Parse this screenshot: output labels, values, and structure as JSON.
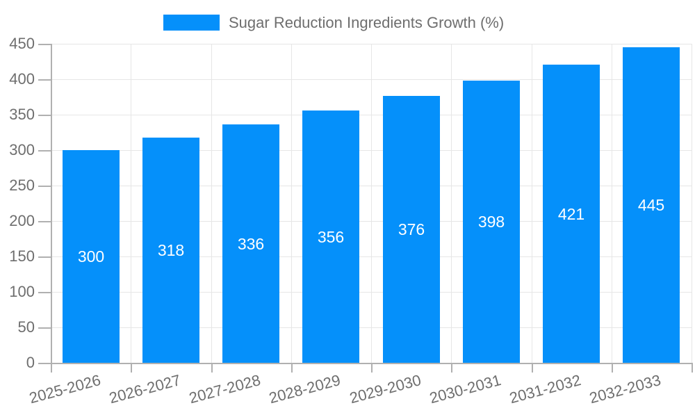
{
  "chart_data": {
    "type": "bar",
    "title": "Sugar Reduction Ingredients Growth (%)",
    "categories": [
      "2025-2026",
      "2026-2027",
      "2027-2028",
      "2028-2029",
      "2029-2030",
      "2030-2031",
      "2031-2032",
      "2032-2033"
    ],
    "values": [
      300,
      318,
      336,
      356,
      376,
      398,
      421,
      445
    ],
    "series": [
      {
        "name": "Sugar Reduction Ingredients Growth (%)",
        "values": [
          300,
          318,
          336,
          356,
          376,
          398,
          421,
          445
        ]
      }
    ],
    "xlabel": "",
    "ylabel": "",
    "ylim": [
      0,
      450
    ],
    "yticks": [
      0,
      50,
      100,
      150,
      200,
      250,
      300,
      350,
      400,
      450
    ],
    "grid": true,
    "legend_position": "top",
    "bar_labels_visible": true,
    "colors": {
      "bar": "#0590fa",
      "grid": "#e6e6e6",
      "axis": "#b0b0b0",
      "text": "#6e6e6e",
      "bar_label": "#ffffff"
    }
  }
}
